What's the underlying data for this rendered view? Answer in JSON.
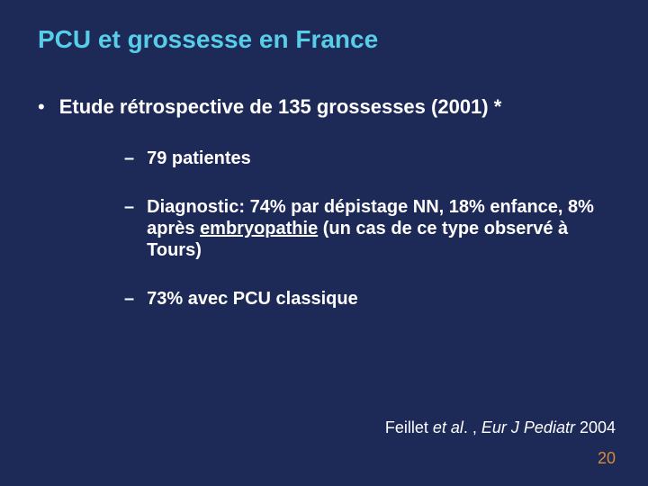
{
  "background_color": "#1d2957",
  "title": {
    "text": "PCU et grossesse en France",
    "color": "#58cde8",
    "fontsize": 28,
    "fontweight": "bold"
  },
  "main_bullet": {
    "marker": "•",
    "text": "Etude rétrospective de 135 grossesses (2001) *",
    "fontsize": 22,
    "fontweight": "bold",
    "color": "#ffffff"
  },
  "sub_bullets": {
    "marker": "–",
    "fontsize": 20,
    "fontweight": "bold",
    "color": "#ffffff",
    "items": [
      {
        "text": "79 patientes"
      },
      {
        "prefix": "Diagnostic: 74% par dépistage NN, 18% enfance, 8% après ",
        "underlined": "embryopathie",
        "suffix": " (un cas de ce type observé à Tours)"
      },
      {
        "text": "73% avec PCU classique"
      }
    ]
  },
  "citation": {
    "author_prefix": "Feillet ",
    "italic": "et al",
    "journal_prefix": ". , ",
    "journal_italic": "Eur J Pediatr",
    "year": " 2004",
    "fontsize": 18,
    "color": "#ffffff"
  },
  "page_number": {
    "text": "20",
    "color": "#d88a3a",
    "fontsize": 18
  }
}
